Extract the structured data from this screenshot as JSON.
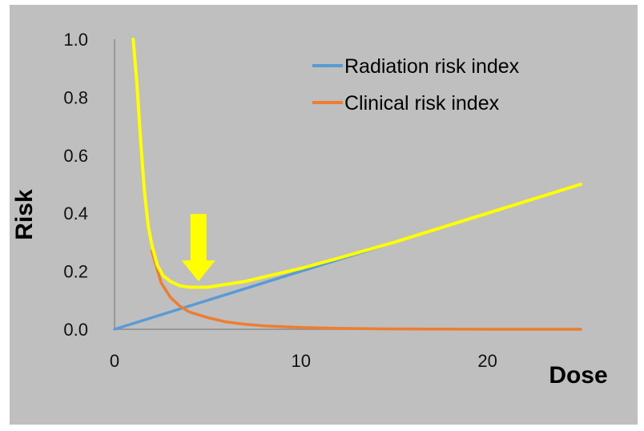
{
  "chart_data": {
    "type": "line",
    "title": "",
    "xlabel": "Dose",
    "ylabel": "Risk",
    "xlim": [
      0,
      25
    ],
    "ylim": [
      0,
      1.0
    ],
    "x_ticks": [
      "0",
      "10",
      "20"
    ],
    "y_ticks": [
      "0.0",
      "0.2",
      "0.4",
      "0.6",
      "0.8",
      "1.0"
    ],
    "grid": false,
    "legend_position": "top-right",
    "series": [
      {
        "name": "Radiation risk index",
        "color": "#5b9bd5",
        "x": [
          0,
          5,
          10,
          15,
          20,
          25
        ],
        "y": [
          0.0,
          0.1,
          0.2,
          0.3,
          0.4,
          0.5
        ]
      },
      {
        "name": "Clinical risk index",
        "color": "#ed7d31",
        "x": [
          2.0,
          2.5,
          3.0,
          3.5,
          4.0,
          5.0,
          6.0,
          7.0,
          8.0,
          10.0,
          12.0,
          15.0,
          20.0,
          25.0
        ],
        "y": [
          0.27,
          0.16,
          0.11,
          0.08,
          0.06,
          0.04,
          0.025,
          0.017,
          0.012,
          0.006,
          0.003,
          0.001,
          0.0,
          0.0
        ]
      },
      {
        "name": "",
        "color": "#ffff00",
        "x": [
          1.0,
          1.2,
          1.4,
          1.6,
          1.8,
          2.0,
          2.3,
          2.6,
          3.0,
          3.5,
          4.0,
          4.5,
          5.0,
          6.0,
          7.0,
          8.0,
          10.0,
          12.0,
          15.0,
          20.0,
          25.0
        ],
        "y": [
          1.0,
          0.85,
          0.65,
          0.48,
          0.36,
          0.29,
          0.22,
          0.185,
          0.165,
          0.15,
          0.145,
          0.145,
          0.145,
          0.155,
          0.165,
          0.18,
          0.21,
          0.245,
          0.3,
          0.4,
          0.5
        ]
      }
    ],
    "annotations": [
      {
        "type": "arrow",
        "direction": "down",
        "color": "#ffff00",
        "points_to_x": 4.5,
        "points_to_y": 0.16
      }
    ]
  }
}
